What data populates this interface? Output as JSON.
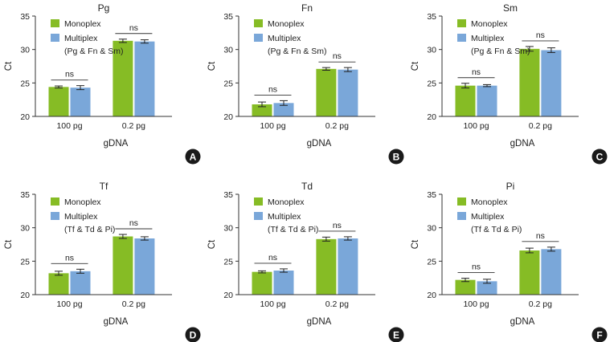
{
  "colors": {
    "monoplex": "#86bc25",
    "multiplex": "#7aa7d9",
    "axis": "#333333",
    "badge": "#1a1a1a"
  },
  "chart_data": [
    {
      "type": "bar",
      "panel": "A",
      "title": "Pg",
      "xlabel": "gDNA",
      "ylabel": "Ct",
      "ylim": [
        20,
        35
      ],
      "yticks": [
        "20",
        "25",
        "30",
        "35"
      ],
      "categories": [
        "100 pg",
        "0.2 pg"
      ],
      "legend": {
        "monoplex": "Monoplex",
        "multiplex": "Multiplex",
        "multiplex_detail": "(Pg & Fn & Sm)"
      },
      "series": [
        {
          "name": "Monoplex",
          "values": [
            24.4,
            31.3
          ],
          "errors": [
            0.15,
            0.25
          ]
        },
        {
          "name": "Multiplex",
          "values": [
            24.3,
            31.2
          ],
          "errors": [
            0.3,
            0.25
          ]
        }
      ],
      "annotations": [
        "ns",
        "ns"
      ]
    },
    {
      "type": "bar",
      "panel": "B",
      "title": "Fn",
      "xlabel": "gDNA",
      "ylabel": "Ct",
      "ylim": [
        20,
        35
      ],
      "yticks": [
        "20",
        "25",
        "30",
        "35"
      ],
      "categories": [
        "100 pg",
        "0.2 pg"
      ],
      "legend": {
        "monoplex": "Monoplex",
        "multiplex": "Multiplex",
        "multiplex_detail": "(Pg & Fn & Sm)"
      },
      "series": [
        {
          "name": "Monoplex",
          "values": [
            21.8,
            27.1
          ],
          "errors": [
            0.35,
            0.2
          ]
        },
        {
          "name": "Multiplex",
          "values": [
            22.0,
            27.0
          ],
          "errors": [
            0.35,
            0.3
          ]
        }
      ],
      "annotations": [
        "ns",
        "ns"
      ]
    },
    {
      "type": "bar",
      "panel": "C",
      "title": "Sm",
      "xlabel": "gDNA",
      "ylabel": "Ct",
      "ylim": [
        20,
        35
      ],
      "yticks": [
        "20",
        "25",
        "30",
        "35"
      ],
      "categories": [
        "100 pg",
        "0.2 pg"
      ],
      "legend": {
        "monoplex": "Monoplex",
        "multiplex": "Multiplex",
        "multiplex_detail": "(Pg & Fn & Sm)"
      },
      "series": [
        {
          "name": "Monoplex",
          "values": [
            24.6,
            30.1
          ],
          "errors": [
            0.35,
            0.35
          ]
        },
        {
          "name": "Multiplex",
          "values": [
            24.6,
            29.9
          ],
          "errors": [
            0.15,
            0.35
          ]
        }
      ],
      "annotations": [
        "ns",
        "ns"
      ]
    },
    {
      "type": "bar",
      "panel": "D",
      "title": "Tf",
      "xlabel": "gDNA",
      "ylabel": "Ct",
      "ylim": [
        20,
        35
      ],
      "yticks": [
        "20",
        "25",
        "30",
        "35"
      ],
      "categories": [
        "100 pg",
        "0.2 pg"
      ],
      "legend": {
        "monoplex": "Monoplex",
        "multiplex": "Multiplex",
        "multiplex_detail": "(Tf & Td & Pi)"
      },
      "series": [
        {
          "name": "Monoplex",
          "values": [
            23.2,
            28.7
          ],
          "errors": [
            0.3,
            0.3
          ]
        },
        {
          "name": "Multiplex",
          "values": [
            23.5,
            28.4
          ],
          "errors": [
            0.3,
            0.25
          ]
        }
      ],
      "annotations": [
        "ns",
        "ns"
      ]
    },
    {
      "type": "bar",
      "panel": "E",
      "title": "Td",
      "xlabel": "gDNA",
      "ylabel": "Ct",
      "ylim": [
        20,
        35
      ],
      "yticks": [
        "20",
        "25",
        "30",
        "35"
      ],
      "categories": [
        "100 pg",
        "0.2 pg"
      ],
      "legend": {
        "monoplex": "Monoplex",
        "multiplex": "Multiplex",
        "multiplex_detail": "(Tf & Td & Pi)"
      },
      "series": [
        {
          "name": "Monoplex",
          "values": [
            23.4,
            28.3
          ],
          "errors": [
            0.15,
            0.3
          ]
        },
        {
          "name": "Multiplex",
          "values": [
            23.6,
            28.4
          ],
          "errors": [
            0.25,
            0.25
          ]
        }
      ],
      "annotations": [
        "ns",
        "ns"
      ]
    },
    {
      "type": "bar",
      "panel": "F",
      "title": "Pi",
      "xlabel": "gDNA",
      "ylabel": "Ct",
      "ylim": [
        20,
        35
      ],
      "yticks": [
        "20",
        "25",
        "30",
        "35"
      ],
      "categories": [
        "100 pg",
        "0.2 pg"
      ],
      "legend": {
        "monoplex": "Monoplex",
        "multiplex": "Multiplex",
        "multiplex_detail": "(Tf & Td & Pi)"
      },
      "series": [
        {
          "name": "Monoplex",
          "values": [
            22.2,
            26.6
          ],
          "errors": [
            0.25,
            0.35
          ]
        },
        {
          "name": "Multiplex",
          "values": [
            22.0,
            26.8
          ],
          "errors": [
            0.3,
            0.3
          ]
        }
      ],
      "annotations": [
        "ns",
        "ns"
      ]
    }
  ]
}
